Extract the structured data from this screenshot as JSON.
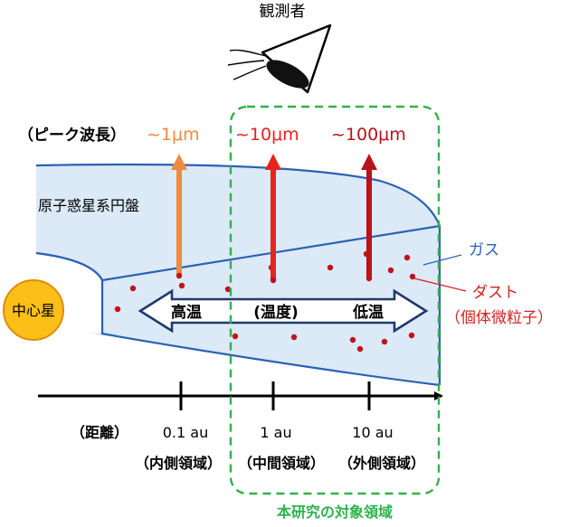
{
  "labels": {
    "observer": "観測者",
    "peak_wavelength": "（ピーク波長）",
    "wl_1": "~1μm",
    "wl_10": "~10μm",
    "wl_100": "~100μm",
    "disk": "原子惑星系円盤",
    "gas": "ガス",
    "dust": "ダスト",
    "dust_sub": "（個体微粒子）",
    "star": "中心星",
    "high_temp": "高温",
    "temperature": "(温度)",
    "low_temp": "低温",
    "distance": "（距離）",
    "tick_01": "0.1 au",
    "tick_1": "1 au",
    "tick_10": "10 au",
    "region_inner": "（内側領域）",
    "region_middle": "（中間領域）",
    "region_outer": "（外側領域）",
    "target_region": "本研究の対象領域"
  },
  "colors": {
    "disk_fill": "#dce9f7",
    "disk_edge": "#2a62b3",
    "arrow_1um": "#f08a3c",
    "arrow_10um": "#e8231b",
    "arrow_100um": "#b8121a",
    "dust": "#c0121a",
    "star": "#fbbf18",
    "star_edge": "#e08c0c",
    "target_box": "#2db34a",
    "gas_label": "#2a62b3",
    "dust_label": "#d4201e"
  },
  "icons": {
    "observer": "eye-icon"
  }
}
